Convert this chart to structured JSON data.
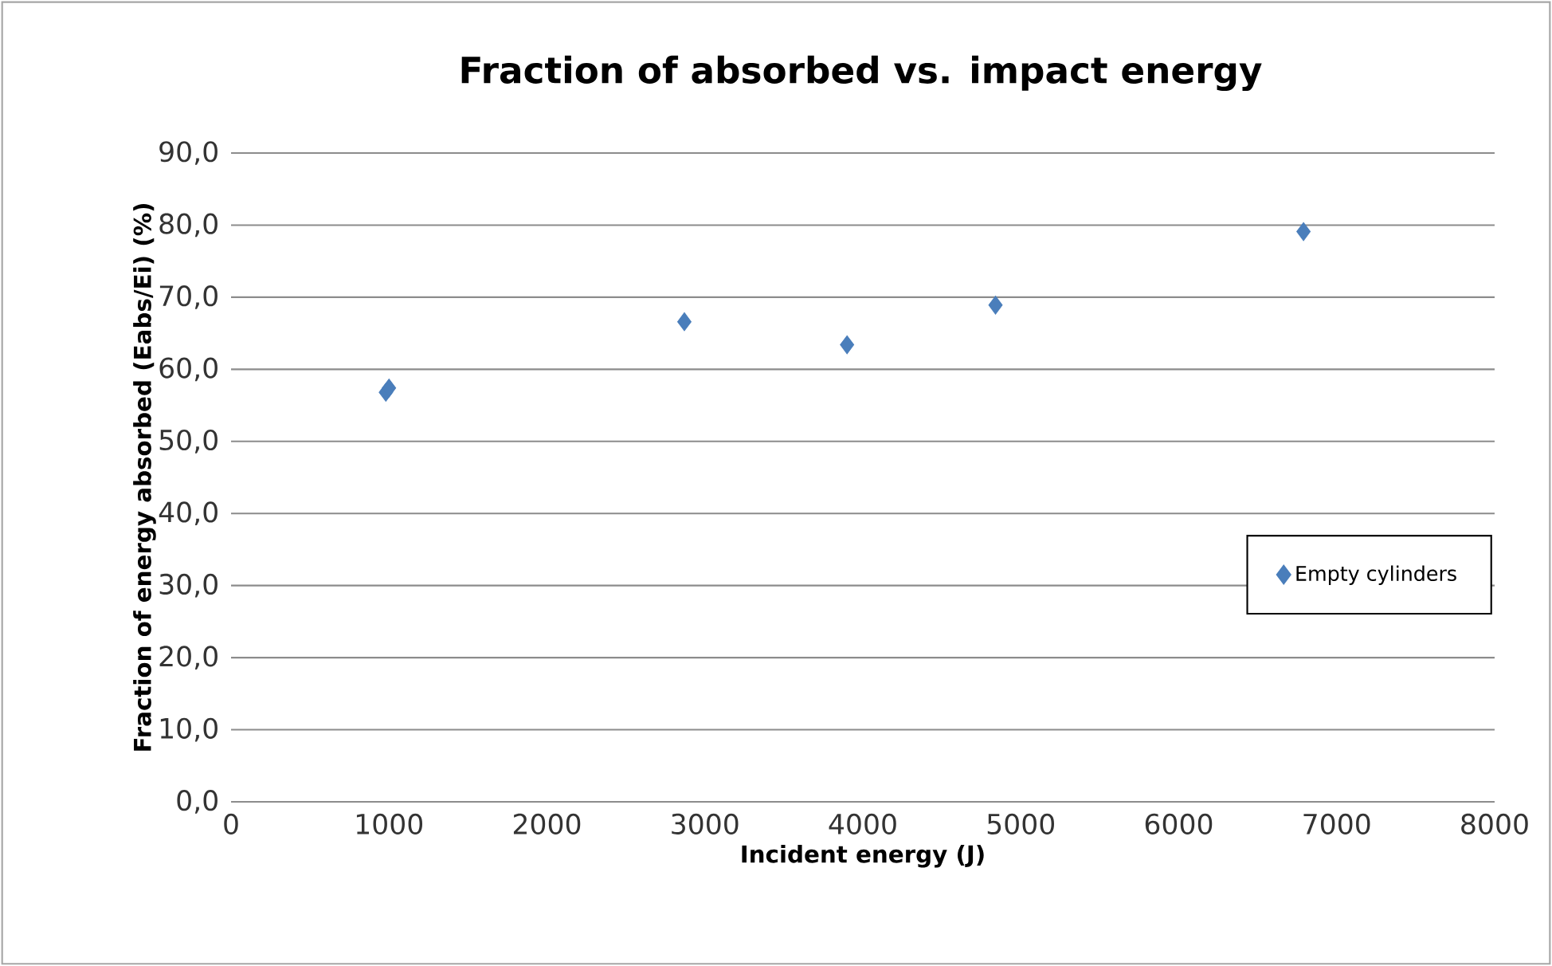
{
  "chart_data": {
    "type": "scatter",
    "title": "Fraction of absorbed vs. impact energy",
    "xlabel": "Incident energy (J)",
    "ylabel": "Fraction of energy absorbed (Eabs/Ei) (%)",
    "series": [
      {
        "name": "Empty cylinders",
        "color": "#4a7ebb",
        "x": [
          980,
          1000,
          2870,
          3900,
          4840,
          6790
        ],
        "values": [
          56.8,
          57.4,
          66.6,
          63.4,
          68.9,
          79.1
        ]
      }
    ],
    "xlim": [
      0,
      8000
    ],
    "xticks": [
      0,
      1000,
      2000,
      3000,
      4000,
      5000,
      6000,
      7000,
      8000
    ],
    "ylim": [
      0,
      90
    ],
    "yticks": [
      {
        "value": 0,
        "label": "0,0"
      },
      {
        "value": 10,
        "label": "10,0"
      },
      {
        "value": 20,
        "label": "20,0"
      },
      {
        "value": 30,
        "label": "30,0"
      },
      {
        "value": 40,
        "label": "40,0"
      },
      {
        "value": 50,
        "label": "50,0"
      },
      {
        "value": 60,
        "label": "60,0"
      },
      {
        "value": 70,
        "label": "70,0"
      },
      {
        "value": 80,
        "label": "80,0"
      },
      {
        "value": 90,
        "label": "90,0"
      }
    ],
    "grid": "y",
    "legend": "right",
    "marker": "diamond"
  }
}
